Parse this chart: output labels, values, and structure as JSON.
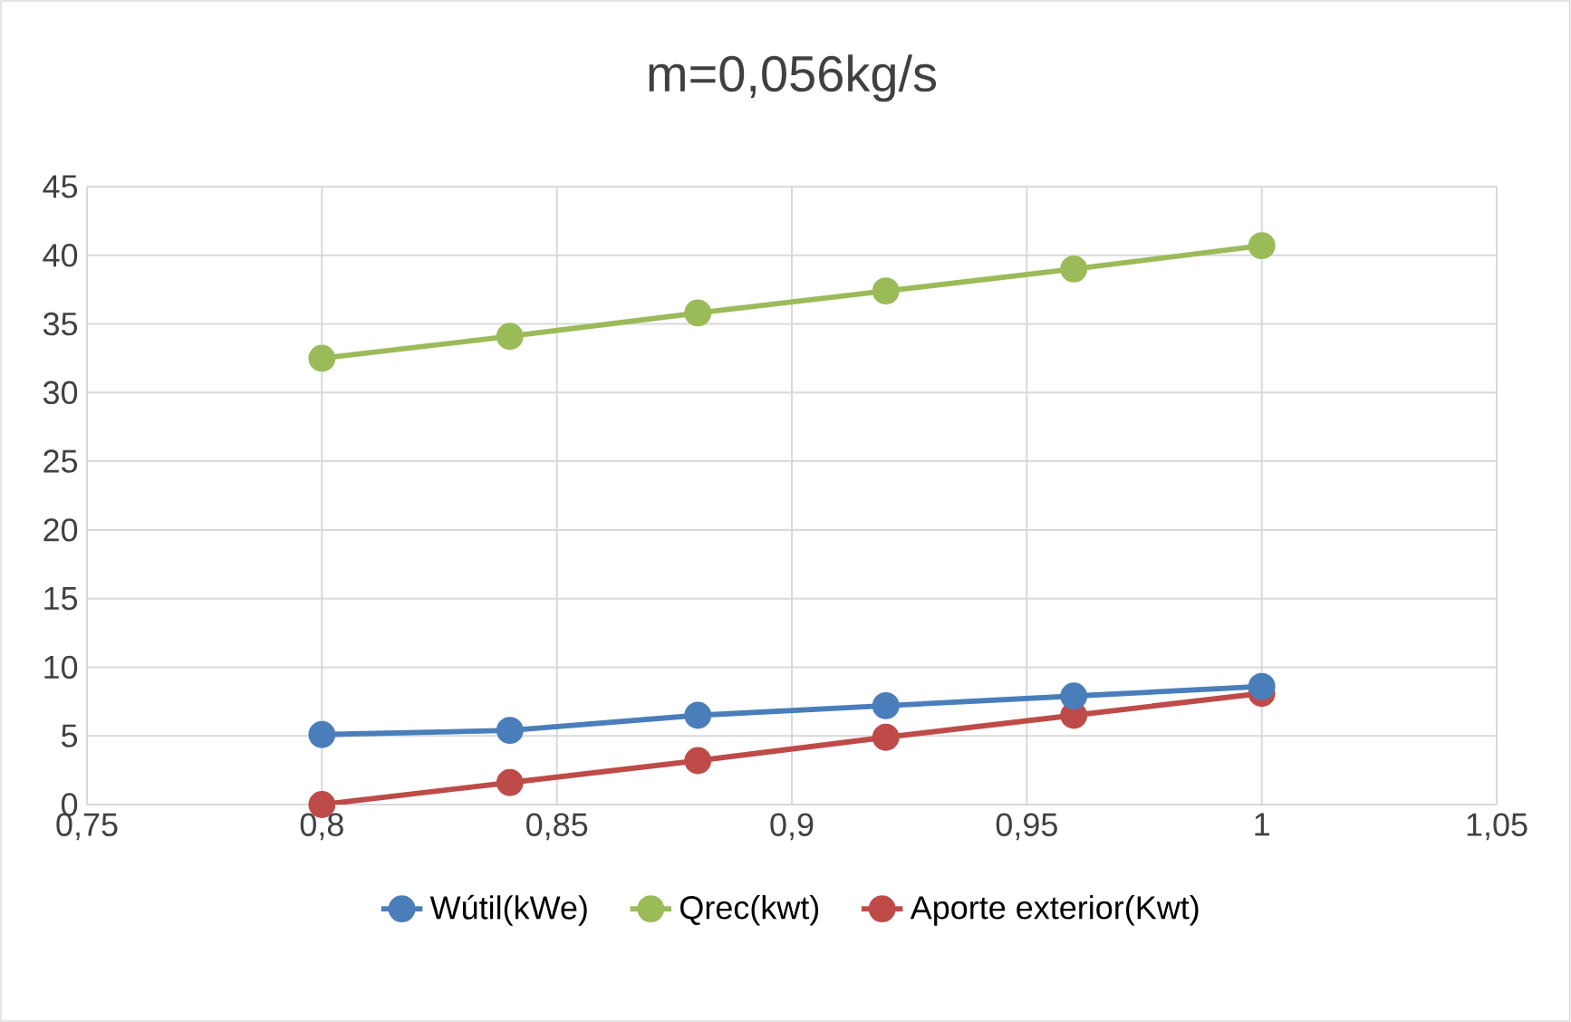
{
  "chart_data": {
    "type": "line",
    "title": "m=0,056kg/s",
    "x": [
      0.8,
      0.84,
      0.88,
      0.92,
      0.96,
      1.0
    ],
    "series": [
      {
        "name": "Wútil(kWe)",
        "color": "#4a7ebb",
        "values": [
          5.1,
          5.4,
          6.5,
          7.2,
          7.9,
          8.6
        ]
      },
      {
        "name": "Qrec(kwt)",
        "color": "#9bbb59",
        "values": [
          32.5,
          34.1,
          35.8,
          37.4,
          39.0,
          40.7
        ]
      },
      {
        "name": "Aporte exterior(Kwt)",
        "color": "#be4b48",
        "values": [
          0,
          1.6,
          3.2,
          4.9,
          6.5,
          8.1
        ]
      }
    ],
    "xlim": [
      0.75,
      1.05
    ],
    "xticks": [
      {
        "value": 0.75,
        "label": "0,75"
      },
      {
        "value": 0.8,
        "label": "0,8"
      },
      {
        "value": 0.85,
        "label": "0,85"
      },
      {
        "value": 0.9,
        "label": "0,9"
      },
      {
        "value": 0.95,
        "label": "0,95"
      },
      {
        "value": 1,
        "label": "1"
      },
      {
        "value": 1.05,
        "label": "1,05"
      }
    ],
    "ylim": [
      0,
      45
    ],
    "yticks": [
      0,
      5,
      10,
      15,
      20,
      25,
      30,
      35,
      40,
      45
    ],
    "grid": true,
    "legend": "bottom",
    "marker": "circle",
    "line_style": "solid"
  }
}
